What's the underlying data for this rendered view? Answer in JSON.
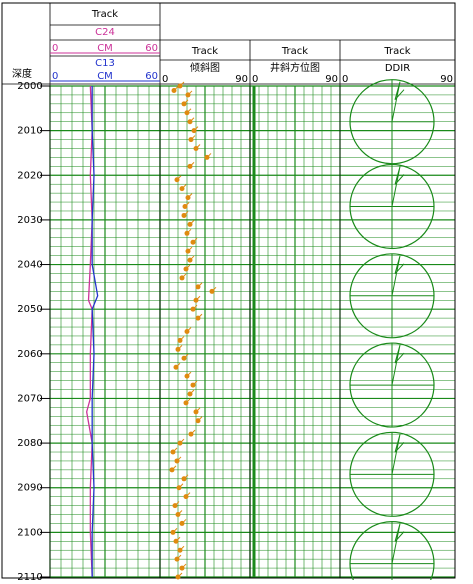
{
  "depth_header": "深度",
  "depth_range": [
    2000,
    2110
  ],
  "depth_ticks": [
    2000,
    2010,
    2020,
    2030,
    2040,
    2050,
    2060,
    2070,
    2080,
    2090,
    2100,
    2110
  ],
  "track1": {
    "title": "Track",
    "curves": [
      {
        "name": "C24",
        "unit": "CM",
        "min": 0,
        "max": 60,
        "color": "#cc3399",
        "depths": [
          2000,
          2010,
          2020,
          2030,
          2040,
          2048,
          2050,
          2060,
          2070,
          2073,
          2080,
          2090,
          2100,
          2110
        ],
        "values": [
          22,
          23,
          22,
          23,
          22,
          21,
          23,
          22,
          22,
          20,
          23,
          22,
          22,
          23
        ]
      },
      {
        "name": "C13",
        "unit": "CM",
        "min": 0,
        "max": 60,
        "color": "#2233cc",
        "depths": [
          2000,
          2010,
          2020,
          2030,
          2040,
          2047,
          2050,
          2060,
          2070,
          2080,
          2090,
          2100,
          2110
        ],
        "values": [
          23,
          23,
          24,
          23,
          23,
          26,
          23,
          24,
          23,
          23,
          24,
          23,
          23
        ]
      }
    ]
  },
  "track2": {
    "title": "Track",
    "name": "倾斜图",
    "min": 0,
    "max": 90,
    "color": "#e08a10",
    "depths": [
      2000,
      2001,
      2002,
      2004,
      2006,
      2008,
      2010,
      2012,
      2014,
      2016,
      2018,
      2021,
      2023,
      2025,
      2027,
      2029,
      2031,
      2033,
      2035,
      2037,
      2039,
      2041,
      2043,
      2045,
      2046,
      2048,
      2050,
      2052,
      2055,
      2057,
      2059,
      2061,
      2063,
      2065,
      2067,
      2069,
      2071,
      2073,
      2075,
      2078,
      2080,
      2082,
      2084,
      2086,
      2088,
      2090,
      2092,
      2094,
      2096,
      2098,
      2100,
      2102,
      2104,
      2106,
      2108,
      2110
    ],
    "values": [
      20,
      14,
      28,
      24,
      27,
      30,
      34,
      31,
      36,
      47,
      30,
      17,
      22,
      28,
      25,
      24,
      30,
      27,
      33,
      28,
      30,
      26,
      22,
      38,
      52,
      36,
      33,
      38,
      27,
      20,
      18,
      24,
      16,
      27,
      33,
      30,
      26,
      36,
      38,
      31,
      20,
      13,
      17,
      12,
      24,
      19,
      26,
      15,
      18,
      22,
      13,
      16,
      20,
      17,
      22,
      18
    ]
  },
  "track3": {
    "title": "Track",
    "name": "井斜方位图",
    "min": 0,
    "max": 90
  },
  "track4": {
    "title": "Track",
    "name": "DDIR",
    "min": 0,
    "max": 90,
    "rose_depths": [
      2008,
      2027,
      2047,
      2067,
      2087,
      2107
    ]
  }
}
